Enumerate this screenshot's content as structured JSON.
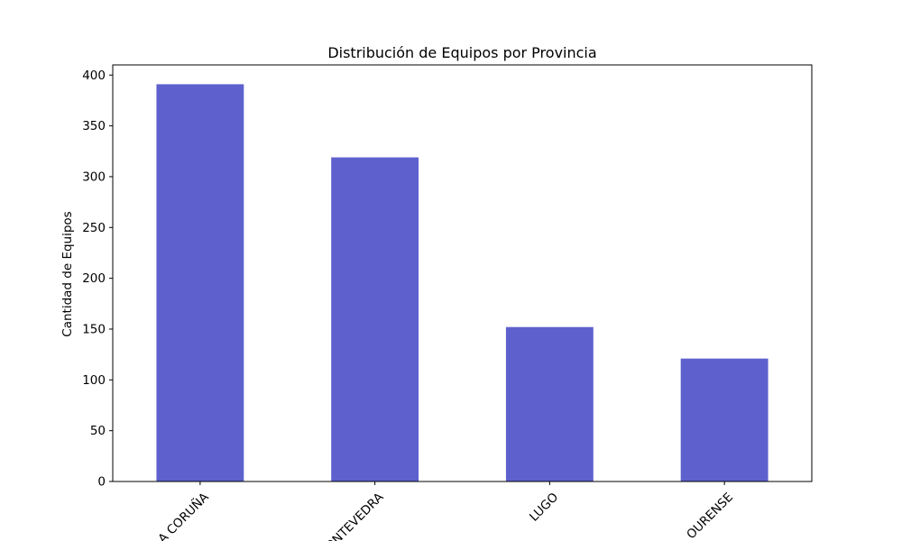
{
  "chart_data": {
    "type": "bar",
    "title": "Distribución de Equipos por Provincia",
    "xlabel": "",
    "ylabel": "Cantidad de Equipos",
    "categories": [
      "A CORUÑA",
      "PONTEVEDRA",
      "LUGO",
      "OURENSE"
    ],
    "values": [
      391,
      319,
      152,
      121
    ],
    "ylim": [
      0,
      410
    ],
    "yticks": [
      0,
      50,
      100,
      150,
      200,
      250,
      300,
      350,
      400
    ],
    "xtick_rotation_deg": 45,
    "grid": false,
    "legend": "none",
    "bar_color": "#5e61cd"
  }
}
